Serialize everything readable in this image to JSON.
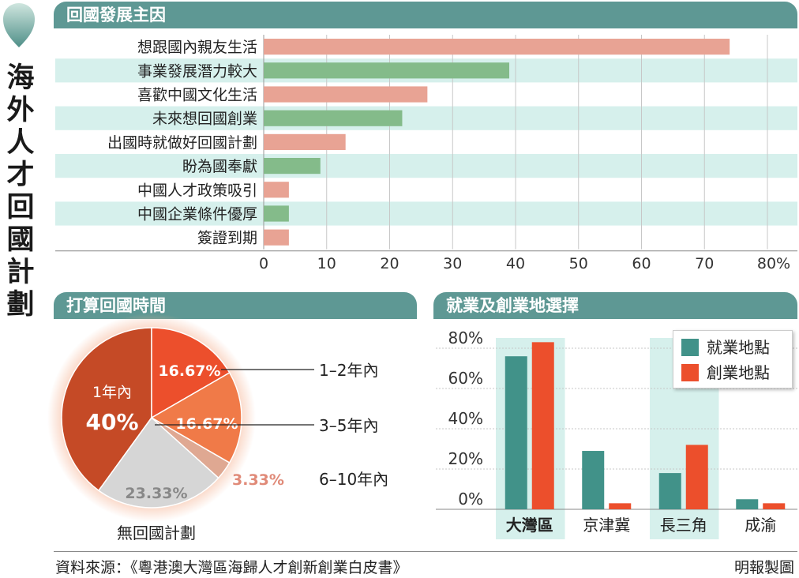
{
  "vertical_title": "海外人才回國計劃",
  "source": "資料來源：《粵港澳大灣區海歸人才創新創業白皮書》",
  "credit": "明報製圖",
  "colors": {
    "header": "#5e9894",
    "teal": "#419289",
    "orange": "#ec4f2c",
    "salmon": "#e8a394",
    "green": "#84bb8a",
    "stripe": "#d6f0ec"
  },
  "chart_data": [
    {
      "type": "bar",
      "orientation": "horizontal",
      "title": "回國發展主因",
      "categories": [
        "想跟國內親友生活",
        "事業發展潛力較大",
        "喜歡中國文化生活",
        "未來想回國創業",
        "出國時就做好回國計劃",
        "盼為國奉獻",
        "中國人才政策吸引",
        "中國企業條件優厚",
        "簽證到期"
      ],
      "values": [
        74,
        39,
        26,
        22,
        13,
        9,
        4,
        4,
        4
      ],
      "xlim": [
        0,
        80
      ],
      "xticks": [
        "0",
        "10",
        "20",
        "30",
        "40",
        "50",
        "60",
        "70",
        "80%"
      ],
      "grid": true
    },
    {
      "type": "pie",
      "title": "打算回國時間",
      "slices": [
        {
          "label": "1年內",
          "value": 40,
          "display": "40%"
        },
        {
          "label": "1–2年內",
          "value": 16.67,
          "display": "16.67%"
        },
        {
          "label": "3–5年內",
          "value": 16.67,
          "display": "16.67%"
        },
        {
          "label": "6–10年內",
          "value": 3.33,
          "display": "3.33%"
        },
        {
          "label": "無回國計劃",
          "value": 23.33,
          "display": "23.33%"
        }
      ]
    },
    {
      "type": "bar",
      "title": "就業及創業地選擇",
      "categories": [
        "大灣區",
        "京津冀",
        "長三角",
        "成渝"
      ],
      "series": [
        {
          "name": "就業地點",
          "values": [
            76,
            29,
            18,
            5
          ]
        },
        {
          "name": "創業地點",
          "values": [
            83,
            3,
            32,
            3
          ]
        }
      ],
      "ylim": [
        0,
        80
      ],
      "yticks": [
        "0%",
        "20%",
        "40%",
        "60%",
        "80%"
      ],
      "legend": "top-right",
      "grid": true
    }
  ]
}
